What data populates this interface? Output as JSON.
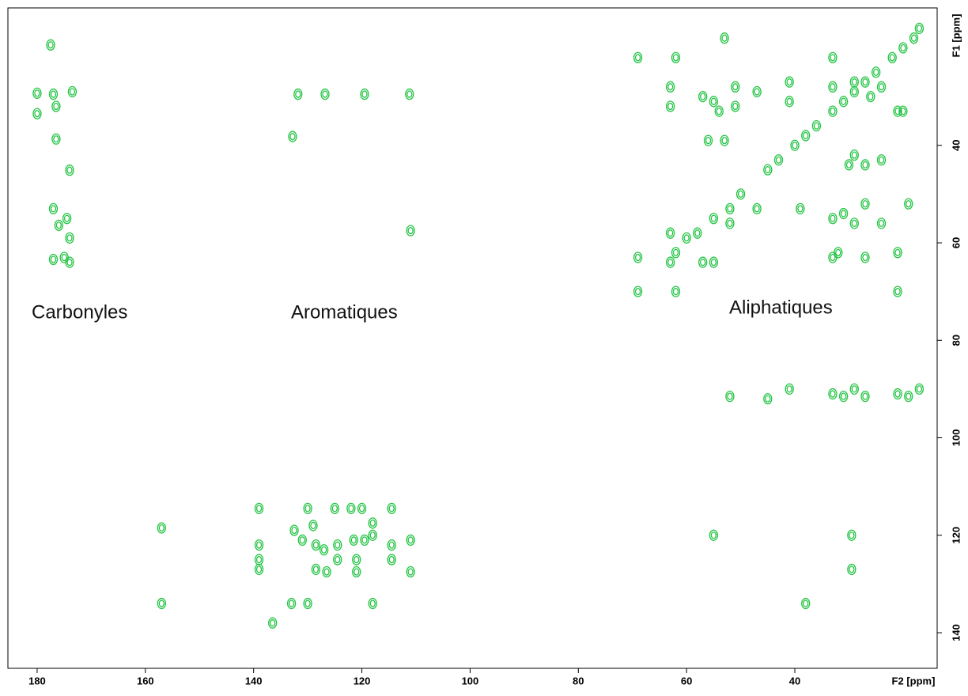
{
  "chart_data": {
    "type": "scatter",
    "xlabel": "F2 [ppm]",
    "ylabel": "F1 [ppm]",
    "xlim": [
      185.4,
      13.7
    ],
    "ylim": [
      11.8,
      147.3
    ],
    "xticks": [
      180,
      160,
      140,
      120,
      100,
      80,
      60,
      40
    ],
    "yticks": [
      40,
      60,
      80,
      100,
      120,
      140
    ],
    "annotations": [
      "Carbonyles",
      "Aromatiques",
      "Aliphatiques"
    ],
    "color": "#22c443",
    "x": [
      180,
      180,
      177.5,
      177,
      176.5,
      176.5,
      174,
      173.5,
      177,
      176,
      174.5,
      174,
      177,
      175,
      174,
      131.8,
      126.8,
      119.5,
      111.2,
      132.8,
      111,
      139,
      139,
      139,
      139,
      132.5,
      131,
      129,
      128.5,
      128.5,
      130,
      127,
      126.5,
      125,
      124.5,
      124.5,
      122,
      121.5,
      121,
      121,
      120,
      119.5,
      118,
      118,
      114.5,
      114.5,
      114.5,
      111,
      111,
      133,
      130,
      118,
      136.5,
      157,
      157,
      63,
      62,
      60,
      58,
      55,
      52,
      50,
      45,
      43,
      40,
      38,
      36,
      33,
      31,
      29,
      27,
      25,
      22,
      20,
      18,
      17,
      69,
      62,
      53,
      63,
      63,
      57,
      55,
      54,
      51,
      51,
      47,
      41,
      41,
      56,
      53,
      63,
      52,
      47,
      39,
      33,
      31,
      29,
      27,
      24,
      19,
      30,
      29,
      27,
      24,
      33,
      33,
      29,
      26,
      24,
      21,
      20,
      69,
      57,
      55,
      62,
      69,
      33,
      32,
      27,
      21,
      21,
      45,
      41,
      52,
      33,
      31,
      29,
      27,
      21,
      19,
      17,
      29.5,
      29.5,
      55,
      38
    ],
    "values": [
      29.3,
      33.5,
      19.4,
      29.5,
      32,
      38.7,
      45.1,
      29,
      53,
      56.4,
      55,
      59,
      63.4,
      63,
      64,
      29.5,
      29.5,
      29.5,
      29.5,
      38.2,
      57.5,
      114.5,
      122,
      125,
      127,
      119,
      121,
      118,
      122,
      127,
      114.5,
      123,
      127.5,
      114.5,
      122,
      125,
      114.5,
      121,
      125,
      127.5,
      114.5,
      121,
      117.5,
      120,
      114.5,
      122,
      125,
      127.5,
      121,
      134,
      134,
      134,
      138,
      118.5,
      134,
      64,
      62,
      59,
      58,
      55,
      53,
      50,
      45,
      43,
      40,
      38,
      36,
      33,
      31,
      29,
      27,
      25,
      22,
      20,
      18,
      16,
      22,
      22,
      18,
      28,
      32,
      30,
      31,
      33,
      28,
      32,
      29,
      27,
      31,
      39,
      39,
      58,
      56,
      53,
      53,
      55,
      54,
      56,
      52,
      56,
      52,
      44,
      42,
      44,
      43,
      22,
      28,
      27,
      30,
      28,
      33,
      33,
      63,
      64,
      64,
      70,
      70,
      63,
      62,
      63,
      62,
      70,
      92,
      90,
      91.5,
      91,
      91.5,
      90,
      91.5,
      91,
      91.5,
      90,
      120,
      127,
      120,
      134
    ]
  }
}
